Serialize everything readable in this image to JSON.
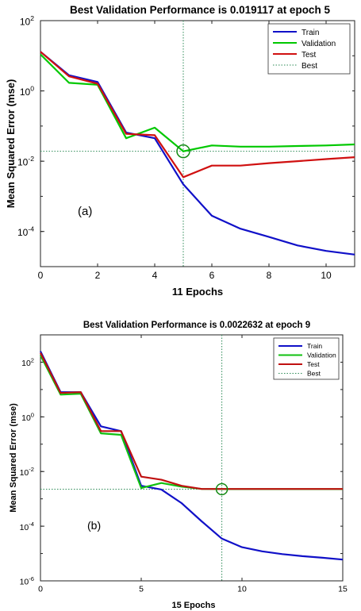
{
  "chart_data": [
    {
      "type": "line",
      "panel_label": "(a)",
      "title": "Best Validation Performance is 0.019117 at epoch 5",
      "xlabel": "11 Epochs",
      "ylabel": "Mean Squared Error  (mse)",
      "yscale": "log",
      "xlim": [
        0,
        11
      ],
      "ylim": [
        1e-05,
        100
      ],
      "xticks": [
        0,
        2,
        4,
        6,
        8,
        10
      ],
      "yticks": [
        {
          "value": 100,
          "base": "10",
          "exp": "2"
        },
        {
          "value": 1,
          "base": "10",
          "exp": "0"
        },
        {
          "value": 0.01,
          "base": "10",
          "exp": "-2"
        },
        {
          "value": 0.0001,
          "base": "10",
          "exp": "-4"
        }
      ],
      "grid": false,
      "legend_position": "top-right",
      "best": {
        "epoch": 5,
        "value": 0.019117
      },
      "series": [
        {
          "name": "Train",
          "color": "#1010c8",
          "x": [
            0,
            1,
            2,
            3,
            4,
            5,
            6,
            7,
            8,
            9,
            10,
            11
          ],
          "y": [
            13,
            2.8,
            1.8,
            0.065,
            0.045,
            0.0022,
            0.00028,
            0.00012,
            7e-05,
            4e-05,
            2.8e-05,
            2.2e-05
          ]
        },
        {
          "name": "Validation",
          "color": "#00c800",
          "x": [
            0,
            1,
            2,
            3,
            4,
            5,
            6,
            7,
            8,
            9,
            10,
            11
          ],
          "y": [
            11,
            1.7,
            1.5,
            0.045,
            0.09,
            0.019117,
            0.028,
            0.026,
            0.026,
            0.027,
            0.028,
            0.03
          ]
        },
        {
          "name": "Test",
          "color": "#d01010",
          "x": [
            0,
            1,
            2,
            3,
            4,
            5,
            6,
            7,
            8,
            9,
            10,
            11
          ],
          "y": [
            13,
            2.6,
            1.6,
            0.06,
            0.055,
            0.0035,
            0.0075,
            0.0075,
            0.0088,
            0.01,
            0.0115,
            0.013
          ]
        },
        {
          "name": "Best",
          "color": "#2e8b57",
          "style": "dotted"
        }
      ]
    },
    {
      "type": "line",
      "panel_label": "(b)",
      "title": "Best Validation Performance is 0.0022632 at epoch 9",
      "xlabel": "15 Epochs",
      "ylabel": "Mean Squared Error  (mse)",
      "yscale": "log",
      "xlim": [
        0,
        15
      ],
      "ylim": [
        1e-06,
        1000
      ],
      "xticks": [
        0,
        5,
        10,
        15
      ],
      "yticks": [
        {
          "value": 100,
          "base": "10",
          "exp": "2"
        },
        {
          "value": 1,
          "base": "10",
          "exp": "0"
        },
        {
          "value": 0.01,
          "base": "10",
          "exp": "-2"
        },
        {
          "value": 0.0001,
          "base": "10",
          "exp": "-4"
        },
        {
          "value": 1e-06,
          "base": "10",
          "exp": "-6"
        }
      ],
      "grid": false,
      "legend_position": "top-right",
      "best": {
        "epoch": 9,
        "value": 0.0022632
      },
      "series": [
        {
          "name": "Train",
          "color": "#1010c8",
          "x": [
            0,
            1,
            2,
            3,
            4,
            5,
            6,
            7,
            8,
            9,
            10,
            11,
            12,
            13,
            14,
            15
          ],
          "y": [
            250,
            8,
            8,
            0.45,
            0.3,
            0.003,
            0.0022,
            0.0007,
            0.00015,
            3.5e-05,
            1.7e-05,
            1.2e-05,
            9.5e-06,
            8e-06,
            7e-06,
            6e-06
          ]
        },
        {
          "name": "Validation",
          "color": "#10c010",
          "x": [
            0,
            1,
            2,
            3,
            4,
            5,
            6,
            7,
            8,
            9,
            10,
            11,
            12,
            13,
            14,
            15
          ],
          "y": [
            180,
            6.5,
            7,
            0.25,
            0.22,
            0.0025,
            0.0038,
            0.0028,
            0.0023,
            0.0022632,
            0.0022632,
            0.0022632,
            0.0022632,
            0.0022632,
            0.0022632,
            0.0022632
          ]
        },
        {
          "name": "Test",
          "color": "#c01010",
          "x": [
            0,
            1,
            2,
            3,
            4,
            5,
            6,
            7,
            8,
            9,
            10,
            11,
            12,
            13,
            14,
            15
          ],
          "y": [
            220,
            7.5,
            8,
            0.3,
            0.3,
            0.0065,
            0.005,
            0.003,
            0.0023,
            0.0023,
            0.0023,
            0.0023,
            0.0023,
            0.0023,
            0.0023,
            0.0023
          ]
        },
        {
          "name": "Best",
          "color": "#2e8b57",
          "style": "dotted"
        }
      ]
    }
  ]
}
